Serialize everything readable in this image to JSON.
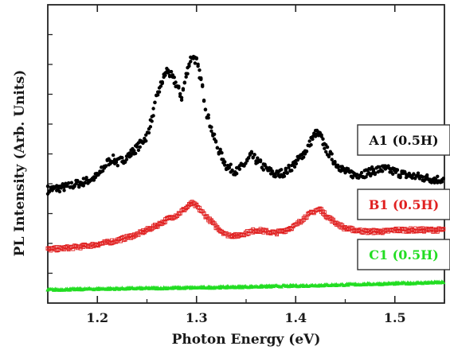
{
  "chart_data": {
    "type": "scatter",
    "title": "",
    "xlabel": "Photon Energy (eV)",
    "ylabel": "PL Intensity (Arb. Units)",
    "xlim": [
      1.15,
      1.55
    ],
    "ylim": [
      0,
      10
    ],
    "x_ticks": [
      1.2,
      1.3,
      1.4,
      1.5
    ],
    "x_tick_labels": [
      "1.2",
      "1.3",
      "1.4",
      "1.5"
    ],
    "y_tick_labels_shown": false,
    "grid": false,
    "legend_placement": "right, beside each series",
    "series": [
      {
        "name": "A1 (0.5H)",
        "color": "#000000",
        "marker": "filled-circle",
        "x": [
          1.15,
          1.16,
          1.17,
          1.18,
          1.19,
          1.2,
          1.21,
          1.215,
          1.22,
          1.23,
          1.24,
          1.25,
          1.255,
          1.26,
          1.265,
          1.27,
          1.275,
          1.28,
          1.285,
          1.29,
          1.295,
          1.3,
          1.305,
          1.31,
          1.32,
          1.33,
          1.34,
          1.35,
          1.355,
          1.36,
          1.37,
          1.38,
          1.39,
          1.4,
          1.41,
          1.415,
          1.42,
          1.425,
          1.43,
          1.44,
          1.45,
          1.46,
          1.47,
          1.48,
          1.49,
          1.5,
          1.51,
          1.52,
          1.53,
          1.54,
          1.55
        ],
        "values": [
          3.8,
          3.85,
          3.9,
          4.0,
          4.1,
          4.25,
          4.7,
          4.85,
          4.7,
          4.9,
          5.2,
          5.6,
          6.2,
          6.9,
          7.4,
          7.8,
          7.6,
          7.3,
          6.9,
          7.7,
          8.3,
          8.1,
          7.4,
          6.4,
          5.3,
          4.6,
          4.4,
          4.7,
          4.95,
          4.8,
          4.5,
          4.3,
          4.4,
          4.7,
          5.1,
          5.4,
          5.7,
          5.6,
          5.2,
          4.7,
          4.4,
          4.3,
          4.35,
          4.45,
          4.5,
          4.4,
          4.3,
          4.25,
          4.2,
          4.15,
          4.15
        ]
      },
      {
        "name": "B1 (0.5H)",
        "color": "#e02020",
        "marker": "open-square",
        "x": [
          1.15,
          1.16,
          1.17,
          1.18,
          1.19,
          1.2,
          1.21,
          1.22,
          1.23,
          1.24,
          1.25,
          1.26,
          1.27,
          1.28,
          1.29,
          1.295,
          1.3,
          1.31,
          1.32,
          1.33,
          1.34,
          1.35,
          1.36,
          1.37,
          1.38,
          1.39,
          1.4,
          1.41,
          1.42,
          1.425,
          1.43,
          1.44,
          1.45,
          1.46,
          1.47,
          1.48,
          1.49,
          1.5,
          1.51,
          1.52,
          1.53,
          1.54,
          1.55
        ],
        "values": [
          1.8,
          1.82,
          1.85,
          1.88,
          1.92,
          1.97,
          2.03,
          2.1,
          2.2,
          2.3,
          2.45,
          2.6,
          2.8,
          2.95,
          3.2,
          3.35,
          3.25,
          2.9,
          2.55,
          2.3,
          2.25,
          2.35,
          2.45,
          2.4,
          2.35,
          2.45,
          2.6,
          2.9,
          3.1,
          3.15,
          2.95,
          2.7,
          2.5,
          2.45,
          2.4,
          2.4,
          2.4,
          2.45,
          2.45,
          2.45,
          2.45,
          2.45,
          2.45
        ]
      },
      {
        "name": "C1 (0.5H)",
        "color": "#22dd22",
        "marker": "filled-triangle",
        "x": [
          1.15,
          1.2,
          1.25,
          1.3,
          1.35,
          1.4,
          1.45,
          1.5,
          1.55
        ],
        "values": [
          0.45,
          0.48,
          0.5,
          0.52,
          0.55,
          0.58,
          0.62,
          0.66,
          0.7
        ]
      }
    ]
  }
}
